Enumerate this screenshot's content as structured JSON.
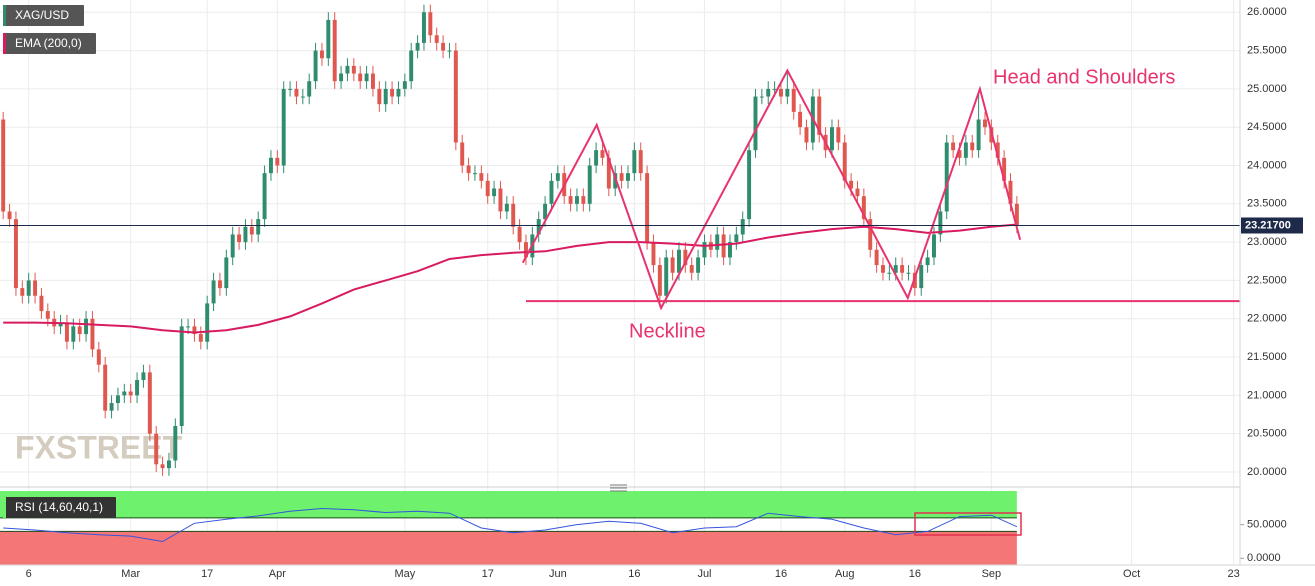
{
  "chart_data": [
    {
      "type": "candlestick",
      "symbol": "XAG/USD",
      "watermark": "FXSTREET",
      "open": [
        24.6,
        23.4,
        23.3,
        22.4,
        22.3,
        22.5,
        22.3,
        22.1,
        22.0,
        21.9,
        21.95,
        21.7,
        21.9,
        21.8,
        22.0,
        21.6,
        21.4,
        20.8,
        20.9,
        21.0,
        21.05,
        21.0,
        21.2,
        21.3,
        20.5,
        20.1,
        20.05,
        20.15,
        20.6,
        21.9,
        21.9,
        21.8,
        21.7,
        22.2,
        22.5,
        22.4,
        22.8,
        23.1,
        23.0,
        23.2,
        23.1,
        23.3,
        23.9,
        24.1,
        24.0,
        25.0,
        25.0,
        24.9,
        24.9,
        25.1,
        25.5,
        25.4,
        25.9,
        25.1,
        25.2,
        25.3,
        25.2,
        25.1,
        25.2,
        25.0,
        24.8,
        25.0,
        24.9,
        25.0,
        25.1,
        25.5,
        25.6,
        26.0,
        25.7,
        25.6,
        25.5,
        25.5,
        24.3,
        24.0,
        23.9,
        23.9,
        23.8,
        23.6,
        23.7,
        23.4,
        23.5,
        23.2,
        23.0,
        22.8,
        23.1,
        23.3,
        23.5,
        23.8,
        23.9,
        23.6,
        23.5,
        23.6,
        23.5,
        24.0,
        24.2,
        24.1,
        23.7,
        23.9,
        23.8,
        23.9,
        24.2,
        23.9,
        23.0,
        22.7,
        22.3,
        22.8,
        22.6,
        22.9,
        22.7,
        22.6,
        22.8,
        23.0,
        22.9,
        23.1,
        22.8,
        23.0,
        23.1,
        23.3,
        24.2,
        24.9,
        24.9,
        25.0,
        25.0,
        24.9,
        25.0,
        24.7,
        24.5,
        24.3,
        24.9,
        24.4,
        24.2,
        24.5,
        24.3,
        23.8,
        23.7,
        23.6,
        23.3,
        22.9,
        22.7,
        22.6,
        22.6,
        22.7,
        22.6,
        22.6,
        22.4,
        22.7,
        22.8,
        23.1,
        23.4,
        24.3,
        24.2,
        24.1,
        24.3,
        24.2,
        24.6,
        24.5,
        24.3,
        24.1,
        23.8,
        23.5
      ],
      "high": [
        24.7,
        23.5,
        23.4,
        22.5,
        22.6,
        22.6,
        22.4,
        22.2,
        22.1,
        22.05,
        22.05,
        22.0,
        22.0,
        22.1,
        22.1,
        21.7,
        21.5,
        21.0,
        21.1,
        21.15,
        21.15,
        21.3,
        21.4,
        21.4,
        20.6,
        20.2,
        20.25,
        20.7,
        22.0,
        22.0,
        22.0,
        21.9,
        22.3,
        22.6,
        22.6,
        22.9,
        23.2,
        23.2,
        23.3,
        23.3,
        23.4,
        24.0,
        24.2,
        24.2,
        25.1,
        25.1,
        25.1,
        25.0,
        25.2,
        25.6,
        25.6,
        26.0,
        26.0,
        25.3,
        25.4,
        25.4,
        25.3,
        25.3,
        25.3,
        25.1,
        25.1,
        25.1,
        25.1,
        25.2,
        25.6,
        25.7,
        26.1,
        26.1,
        25.8,
        25.7,
        25.6,
        25.6,
        24.4,
        24.1,
        24.0,
        24.0,
        23.9,
        23.8,
        23.8,
        23.6,
        23.6,
        23.3,
        23.1,
        23.2,
        23.4,
        23.6,
        23.9,
        24.0,
        24.0,
        23.7,
        23.7,
        23.7,
        24.1,
        24.3,
        24.3,
        24.2,
        24.0,
        24.0,
        24.0,
        24.3,
        24.3,
        24.0,
        23.1,
        22.8,
        22.9,
        22.9,
        23.0,
        23.0,
        22.8,
        22.9,
        23.1,
        23.1,
        23.2,
        23.2,
        23.1,
        23.2,
        23.4,
        24.3,
        25.0,
        25.0,
        25.1,
        25.1,
        25.1,
        25.25,
        25.1,
        24.8,
        24.6,
        25.0,
        25.0,
        24.5,
        24.6,
        24.6,
        24.4,
        23.9,
        23.8,
        23.7,
        23.4,
        23.0,
        22.8,
        22.7,
        22.8,
        22.8,
        22.7,
        22.7,
        22.8,
        22.9,
        23.2,
        23.5,
        24.4,
        24.4,
        24.3,
        24.4,
        24.4,
        24.95,
        24.7,
        24.6,
        24.4,
        24.2,
        23.9,
        23.6
      ],
      "low": [
        23.3,
        23.2,
        22.3,
        22.2,
        22.2,
        22.2,
        22.0,
        21.9,
        21.8,
        21.8,
        21.6,
        21.6,
        21.7,
        21.7,
        21.5,
        21.3,
        20.7,
        20.7,
        20.8,
        20.9,
        20.9,
        20.9,
        21.1,
        20.4,
        20.0,
        19.95,
        19.95,
        20.05,
        20.5,
        21.8,
        21.7,
        21.6,
        21.6,
        22.1,
        22.3,
        22.3,
        22.7,
        22.9,
        22.9,
        23.0,
        23.0,
        23.2,
        23.8,
        23.9,
        23.9,
        24.9,
        24.8,
        24.8,
        24.8,
        25.0,
        25.3,
        25.3,
        25.0,
        25.0,
        25.1,
        25.1,
        25.0,
        25.0,
        24.9,
        24.7,
        24.7,
        24.8,
        24.8,
        24.9,
        25.0,
        25.4,
        25.5,
        25.6,
        25.5,
        25.4,
        25.4,
        24.2,
        23.9,
        23.8,
        23.8,
        23.7,
        23.5,
        23.5,
        23.3,
        23.3,
        23.1,
        22.9,
        22.7,
        22.7,
        23.0,
        23.2,
        23.4,
        23.7,
        23.5,
        23.4,
        23.4,
        23.4,
        23.4,
        23.9,
        24.0,
        23.6,
        23.6,
        23.7,
        23.7,
        23.8,
        23.8,
        22.9,
        22.6,
        22.15,
        22.2,
        22.5,
        22.5,
        22.6,
        22.5,
        22.5,
        22.7,
        22.8,
        22.8,
        22.7,
        22.7,
        22.9,
        23.0,
        23.2,
        24.1,
        24.8,
        24.8,
        24.9,
        24.8,
        24.8,
        24.6,
        24.4,
        24.2,
        24.2,
        24.3,
        24.1,
        24.1,
        24.2,
        23.7,
        23.6,
        23.5,
        23.2,
        22.8,
        22.6,
        22.5,
        22.5,
        22.5,
        22.5,
        22.5,
        22.3,
        22.3,
        22.6,
        22.7,
        23.0,
        23.3,
        24.1,
        24.0,
        24.0,
        24.1,
        24.1,
        24.4,
        24.2,
        24.0,
        23.7,
        23.4,
        23.12
      ],
      "close": [
        23.4,
        23.3,
        22.4,
        22.3,
        22.5,
        22.3,
        22.1,
        22.0,
        21.9,
        21.95,
        21.7,
        21.9,
        21.8,
        22.0,
        21.6,
        21.4,
        20.8,
        20.9,
        21.0,
        21.05,
        21.0,
        21.2,
        21.3,
        20.5,
        20.1,
        20.05,
        20.15,
        20.6,
        21.9,
        21.9,
        21.8,
        21.7,
        22.2,
        22.5,
        22.4,
        22.8,
        23.1,
        23.0,
        23.2,
        23.1,
        23.3,
        23.9,
        24.1,
        24.0,
        25.0,
        25.0,
        24.9,
        24.9,
        25.1,
        25.5,
        25.4,
        25.9,
        25.1,
        25.2,
        25.3,
        25.2,
        25.1,
        25.2,
        25.0,
        24.8,
        25.0,
        24.9,
        25.0,
        25.1,
        25.5,
        25.6,
        26.0,
        25.7,
        25.6,
        25.5,
        25.5,
        24.3,
        24.0,
        23.9,
        23.9,
        23.8,
        23.6,
        23.7,
        23.4,
        23.5,
        23.2,
        23.0,
        22.8,
        23.1,
        23.3,
        23.5,
        23.8,
        23.9,
        23.6,
        23.5,
        23.6,
        23.5,
        24.0,
        24.2,
        24.1,
        23.7,
        23.9,
        23.8,
        23.9,
        24.2,
        23.9,
        23.0,
        22.7,
        22.3,
        22.8,
        22.6,
        22.9,
        22.7,
        22.6,
        22.8,
        23.0,
        22.9,
        23.1,
        22.8,
        23.0,
        23.1,
        23.3,
        24.2,
        24.9,
        24.9,
        25.0,
        25.0,
        24.9,
        25.0,
        24.7,
        24.5,
        24.3,
        24.9,
        24.4,
        24.2,
        24.5,
        24.3,
        23.8,
        23.7,
        23.6,
        23.3,
        22.9,
        22.7,
        22.6,
        22.6,
        22.7,
        22.6,
        22.6,
        22.4,
        22.7,
        22.8,
        23.1,
        23.4,
        24.3,
        24.2,
        24.1,
        24.3,
        24.2,
        24.6,
        24.5,
        24.3,
        24.1,
        23.8,
        23.5,
        23.22
      ],
      "colors": {
        "up": "#2f8c6e",
        "down": "#e0574f"
      },
      "series": [
        {
          "name": "EMA (200,0)",
          "color": "#d81b60",
          "x": [
            0,
            5,
            10,
            15,
            20,
            25,
            30,
            35,
            40,
            45,
            50,
            55,
            60,
            65,
            70,
            75,
            80,
            85,
            90,
            95,
            100,
            105,
            110,
            115,
            120,
            125,
            130,
            135,
            140,
            145,
            150,
            155,
            159
          ],
          "values": [
            21.95,
            21.95,
            21.94,
            21.92,
            21.9,
            21.85,
            21.82,
            21.85,
            21.92,
            22.03,
            22.2,
            22.38,
            22.5,
            22.62,
            22.78,
            22.83,
            22.86,
            22.88,
            22.95,
            23.0,
            23.0,
            22.98,
            22.95,
            22.98,
            23.06,
            23.12,
            23.17,
            23.2,
            23.17,
            23.12,
            23.15,
            23.2,
            23.23
          ]
        }
      ],
      "last_price": {
        "value": 23.217,
        "label": "23.21700"
      },
      "annotations": {
        "color": "#e8336d",
        "labels": [
          "Neckline",
          "Head and Shoulders"
        ],
        "lines": [
          {
            "x": [
              81.5,
              93.1,
              103.2,
              123,
              141.9,
              153.2,
              159.5
            ],
            "y": [
              22.73,
              24.53,
              22.14,
              25.24,
              22.27,
              25.0,
              23.03
            ]
          },
          {
            "x": [
              82,
              194
            ],
            "y": [
              22.23,
              22.23
            ]
          }
        ]
      },
      "xlim": [
        -0.5,
        194
      ],
      "xticks": [
        {
          "value": 4,
          "label": "6"
        },
        {
          "value": 20,
          "label": "Mar"
        },
        {
          "value": 32,
          "label": "17"
        },
        {
          "value": 43,
          "label": "Apr"
        },
        {
          "value": 63,
          "label": "May"
        },
        {
          "value": 76,
          "label": "17"
        },
        {
          "value": 87,
          "label": "Jun"
        },
        {
          "value": 99,
          "label": "16"
        },
        {
          "value": 110,
          "label": "Jul"
        },
        {
          "value": 122,
          "label": "16"
        },
        {
          "value": 132,
          "label": "Aug"
        },
        {
          "value": 143,
          "label": "16"
        },
        {
          "value": 155,
          "label": "Sep"
        },
        {
          "value": 177,
          "label": "Oct"
        },
        {
          "value": 193,
          "label": "23"
        }
      ],
      "ylim": [
        19.83,
        26.16
      ],
      "yticks": [
        {
          "value": 20,
          "label": "20.0000"
        },
        {
          "value": 20.5,
          "label": "20.5000"
        },
        {
          "value": 21,
          "label": "21.0000"
        },
        {
          "value": 21.5,
          "label": "21.5000"
        },
        {
          "value": 22,
          "label": "22.0000"
        },
        {
          "value": 22.5,
          "label": "22.5000"
        },
        {
          "value": 23,
          "label": "23.0000"
        },
        {
          "value": 23.5,
          "label": "23.5000"
        },
        {
          "value": 24,
          "label": "24.0000"
        },
        {
          "value": 24.5,
          "label": "24.5000"
        },
        {
          "value": 25,
          "label": "25.0000"
        },
        {
          "value": 25.5,
          "label": "25.5000"
        },
        {
          "value": 26,
          "label": "26.0000"
        }
      ],
      "grid": true
    },
    {
      "type": "line",
      "title": "RSI (14,60,40,1)",
      "upper": 60,
      "lower": 40,
      "band_colors": {
        "upper": "#6ef26e",
        "lower": "#f47676"
      },
      "series": [
        {
          "color": "#3355dd",
          "x": [
            0,
            5,
            10,
            15,
            20,
            25,
            30,
            35,
            40,
            45,
            50,
            55,
            60,
            65,
            70,
            75,
            80,
            85,
            90,
            95,
            100,
            105,
            110,
            115,
            120,
            125,
            130,
            135,
            140,
            145,
            150,
            155,
            159
          ],
          "values": [
            45,
            42,
            38,
            35,
            33,
            25,
            52,
            58,
            63,
            70,
            74,
            72,
            68,
            70,
            67,
            45,
            38,
            42,
            50,
            55,
            52,
            38,
            45,
            47,
            67,
            62,
            58,
            45,
            35,
            40,
            62,
            64,
            47
          ]
        }
      ],
      "ylim": [
        -10,
        100
      ],
      "yticks": [
        {
          "value": 50,
          "label": "50.0000"
        },
        {
          "value": 0,
          "label": "0.0000"
        }
      ]
    }
  ]
}
